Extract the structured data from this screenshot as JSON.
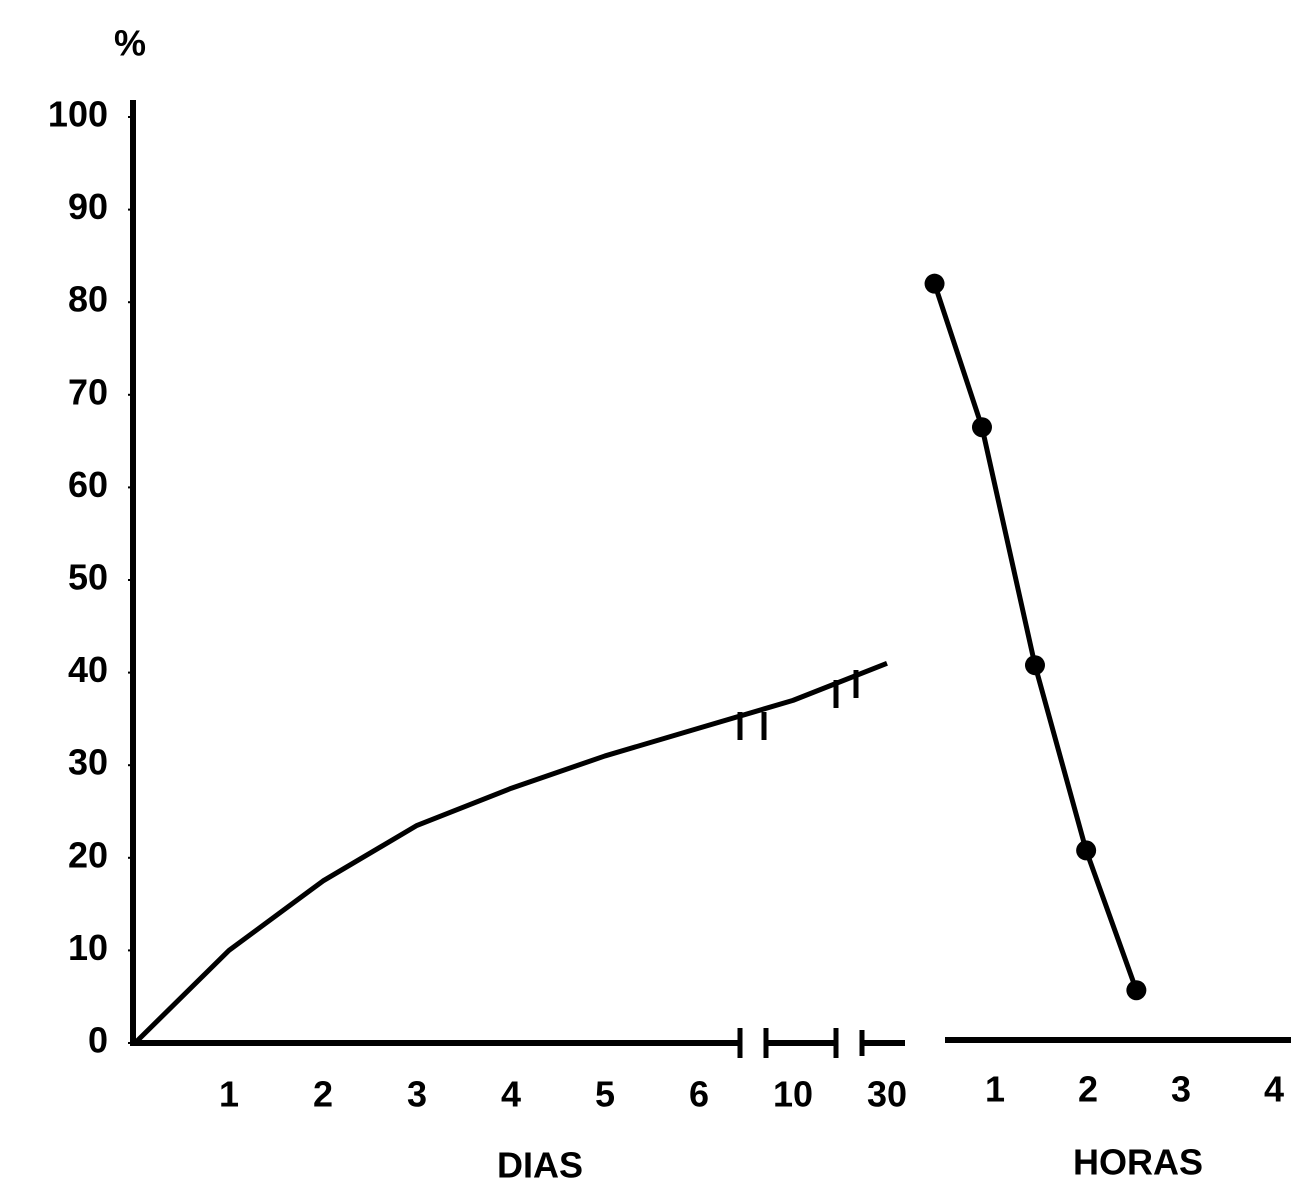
{
  "chart_data": [
    {
      "type": "line",
      "y_label": "%",
      "x_label": "DIAS",
      "categories": [
        null,
        "1",
        "2",
        "3",
        "4",
        "5",
        "6",
        "10",
        "30"
      ],
      "values": [
        0,
        10,
        17.5,
        23.5,
        27.5,
        31,
        34,
        37,
        41
      ],
      "color": "#000000",
      "ylim": [
        0,
        100
      ],
      "yticks": [
        0,
        10,
        20,
        30,
        40,
        50,
        60,
        70,
        80,
        90,
        100
      ]
    },
    {
      "type": "scatter-line",
      "x_label": "HORAS",
      "x": [
        0.35,
        0.86,
        1.43,
        1.98,
        2.52
      ],
      "values": [
        82,
        66.5,
        40.8,
        20.8,
        5.7
      ],
      "color": "#000000",
      "xlim": [
        0,
        4
      ],
      "xticks": [
        1,
        2,
        3,
        4
      ]
    }
  ]
}
